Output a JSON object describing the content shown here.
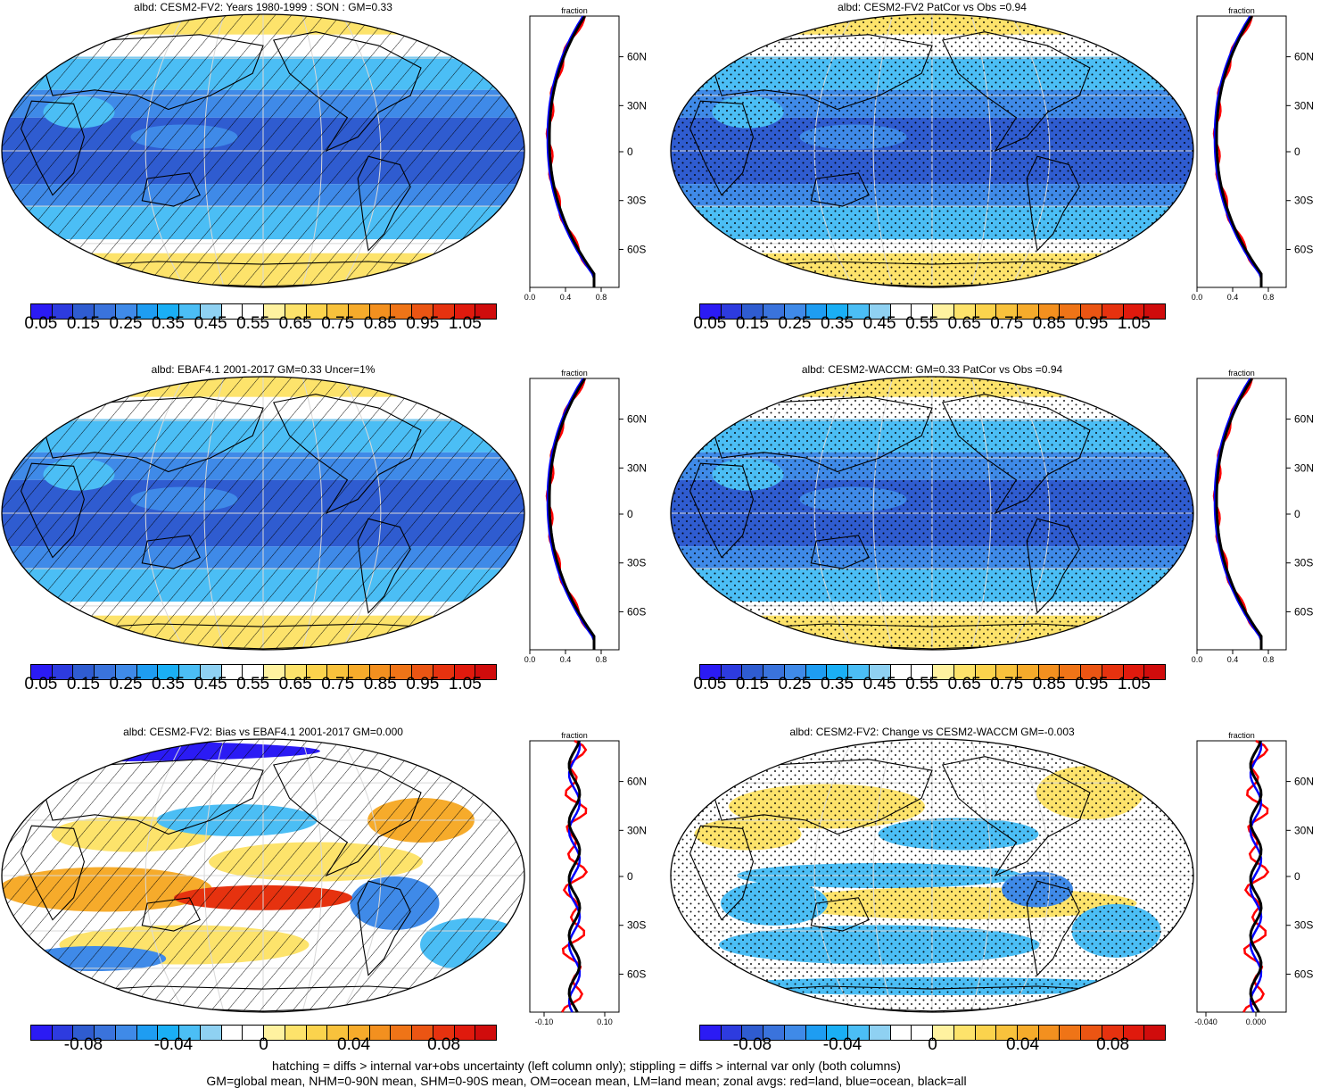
{
  "panels": [
    {
      "id": "p1",
      "title": "albd: CESM2-FV2: Years 1980-1999 : SON : GM=0.33",
      "field": "abs",
      "pattern": "hatch"
    },
    {
      "id": "p2",
      "title": "albd: CESM2-FV2 PatCor vs Obs =0.94",
      "field": "abs",
      "pattern": "stipple"
    },
    {
      "id": "p3",
      "title": "albd: EBAF4.1 2001-2017 GM=0.33 Uncer=1%",
      "field": "abs",
      "pattern": "hatch"
    },
    {
      "id": "p4",
      "title": "albd: CESM2-WACCM: GM=0.33 PatCor vs Obs =0.94",
      "field": "abs",
      "pattern": "stipple"
    },
    {
      "id": "p5",
      "title": "albd: CESM2-FV2: Bias vs EBAF4.1 2001-2017  GM=0.000",
      "field": "diff",
      "pattern": "hatch"
    },
    {
      "id": "p6",
      "title": "albd: CESM2-FV2: Change vs CESM2-WACCM GM=-0.003",
      "field": "diff",
      "pattern": "stipple"
    }
  ],
  "colorbar_abs": {
    "labels": [
      "0.05",
      "0.15",
      "0.25",
      "0.35",
      "0.45",
      "0.55",
      "0.65",
      "0.75",
      "0.85",
      "0.95",
      "1.05"
    ],
    "colors": [
      "#2b1bf4",
      "#2d3bdf",
      "#2f5cd0",
      "#3a73dc",
      "#3f8ae8",
      "#1e9df2",
      "#1aaff5",
      "#4bbef5",
      "#8fd1f2",
      "#ffffff",
      "#ffffff",
      "#fff2a0",
      "#fde36b",
      "#fbd34d",
      "#f8c23c",
      "#f6ab2b",
      "#f3901f",
      "#ef7417",
      "#eb5513",
      "#e6320f",
      "#e01a0d",
      "#d00c0c"
    ]
  },
  "colorbar_diff": {
    "labels": [
      "-0.08",
      "-0.04",
      "0",
      "0.04",
      "0.08"
    ],
    "colors": [
      "#2b1bf4",
      "#2d3bdf",
      "#2f5cd0",
      "#3a73dc",
      "#3f8ae8",
      "#1e9df2",
      "#1aaff5",
      "#4bbef5",
      "#8fd1f2",
      "#ffffff",
      "#ffffff",
      "#fff2a0",
      "#fde36b",
      "#fbd34d",
      "#f8c23c",
      "#f6ab2b",
      "#f3901f",
      "#ef7417",
      "#eb5513",
      "#e6320f",
      "#e01a0d",
      "#d00c0c"
    ]
  },
  "zonal": {
    "title": "fraction",
    "lat_labels": [
      "60N",
      "30N",
      "0",
      "30S",
      "60S"
    ],
    "x_labels_abs": [
      "0.0",
      "0.4",
      "0.8"
    ],
    "x_labels_diff_left": [
      "-0.10",
      "0.10"
    ],
    "x_labels_diff_right": [
      "-0.040",
      "0.000"
    ],
    "line_colors": {
      "land": "#ff0000",
      "ocean": "#0000ff",
      "all": "#000000"
    }
  },
  "map_colors": {
    "deep_blue": "#2f5cd0",
    "mid_blue": "#3f8ae8",
    "light_blue": "#4bbef5",
    "pale_blue": "#8fd1f2",
    "yellow": "#fde36b",
    "orange": "#f6ab2b",
    "red": "#e6320f",
    "white": "#ffffff"
  },
  "footnotes": [
    "hatching = diffs > internal var+obs uncertainty (left column only); stippling = diffs > internal var only (both columns)",
    "GM=global mean, NHM=0-90N mean, SHM=0-90S mean, OM=ocean mean, LM=land mean; zonal avgs: red=land, blue=ocean, black=all"
  ]
}
